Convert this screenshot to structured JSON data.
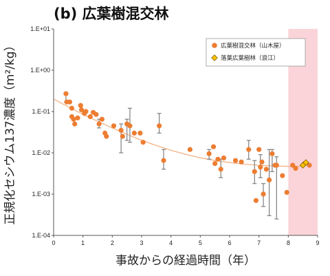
{
  "title": "(b) 広葉樹混交林",
  "chart_data": {
    "type": "scatter",
    "title": "(b) 広葉樹混交林",
    "xlabel": "事故からの経過時間（年）",
    "ylabel": "正規化セシウム137濃度（m²/kg）",
    "xlim": [
      0,
      9
    ],
    "ylim": [
      0.0001,
      10
    ],
    "yscale": "log",
    "x_ticks": [
      "0",
      "1",
      "2",
      "3",
      "4",
      "5",
      "6",
      "7",
      "8",
      "9"
    ],
    "y_ticks": [
      "1.E-04",
      "1.E-03",
      "1.E-02",
      "1.E-01",
      "1.E+00",
      "1.E+01"
    ],
    "grid": false,
    "legend_position": "top-right",
    "shaded_region": {
      "x": [
        8,
        9
      ],
      "color": "#fad4d8"
    },
    "series": [
      {
        "name": "広葉樹混交林（山木屋）",
        "marker": "circle",
        "color": "#ed7d31",
        "points": [
          {
            "x": 0.42,
            "y": 0.27
          },
          {
            "x": 0.45,
            "y": 0.17
          },
          {
            "x": 0.55,
            "y": 0.17
          },
          {
            "x": 0.62,
            "y": 0.12
          },
          {
            "x": 0.62,
            "y": 0.075
          },
          {
            "x": 0.68,
            "y": 0.065
          },
          {
            "x": 0.72,
            "y": 0.05
          },
          {
            "x": 0.82,
            "y": 0.07
          },
          {
            "x": 0.92,
            "y": 0.14
          },
          {
            "x": 0.95,
            "y": 0.11
          },
          {
            "x": 1.05,
            "y": 0.09
          },
          {
            "x": 1.1,
            "y": 0.1
          },
          {
            "x": 1.25,
            "y": 0.075
          },
          {
            "x": 1.35,
            "y": 0.095
          },
          {
            "x": 1.45,
            "y": 0.085
          },
          {
            "x": 1.55,
            "y": 0.05
          },
          {
            "x": 1.65,
            "y": 0.065
          },
          {
            "x": 1.75,
            "y": 0.03
          },
          {
            "x": 1.8,
            "y": 0.025
          },
          {
            "x": 2.05,
            "y": 0.045
          },
          {
            "x": 2.3,
            "y": 0.035
          },
          {
            "x": 2.35,
            "y": 0.025
          },
          {
            "x": 2.5,
            "y": 0.05
          },
          {
            "x": 2.6,
            "y": 0.045
          },
          {
            "x": 2.75,
            "y": 0.03
          },
          {
            "x": 2.95,
            "y": 0.03
          },
          {
            "x": 3.05,
            "y": 0.018
          },
          {
            "x": 3.6,
            "y": 0.045
          },
          {
            "x": 3.75,
            "y": 0.0065
          },
          {
            "x": 4.65,
            "y": 0.012
          },
          {
            "x": 5.3,
            "y": 0.0095
          },
          {
            "x": 5.45,
            "y": 0.014
          },
          {
            "x": 5.5,
            "y": 0.0055
          },
          {
            "x": 5.6,
            "y": 0.007
          },
          {
            "x": 5.7,
            "y": 0.004
          },
          {
            "x": 5.8,
            "y": 0.0075
          },
          {
            "x": 6.2,
            "y": 0.0065
          },
          {
            "x": 6.4,
            "y": 0.006
          },
          {
            "x": 6.65,
            "y": 0.012
          },
          {
            "x": 6.85,
            "y": 0.0035
          },
          {
            "x": 6.9,
            "y": 0.0007
          },
          {
            "x": 7.0,
            "y": 0.012
          },
          {
            "x": 7.05,
            "y": 0.0045
          },
          {
            "x": 7.1,
            "y": 0.006
          },
          {
            "x": 7.15,
            "y": 0.001
          },
          {
            "x": 7.25,
            "y": 0.004
          },
          {
            "x": 7.35,
            "y": 0.0022
          },
          {
            "x": 7.45,
            "y": 0.0095
          },
          {
            "x": 7.55,
            "y": 0.005
          },
          {
            "x": 7.6,
            "y": 0.005
          },
          {
            "x": 7.8,
            "y": 0.0028
          },
          {
            "x": 7.95,
            "y": 0.0011
          },
          {
            "x": 8.15,
            "y": 0.005
          },
          {
            "x": 8.25,
            "y": 0.0042
          },
          {
            "x": 8.55,
            "y": 0.0055
          },
          {
            "x": 8.72,
            "y": 0.005
          }
        ],
        "error_bars": [
          {
            "x": 0.42,
            "low": 0.17,
            "high": 0.27
          },
          {
            "x": 1.55,
            "low": 0.04,
            "high": 0.065
          },
          {
            "x": 2.3,
            "low": 0.01,
            "high": 0.05
          },
          {
            "x": 2.5,
            "low": 0.02,
            "high": 0.065
          },
          {
            "x": 2.6,
            "low": 0.018,
            "high": 0.12
          },
          {
            "x": 3.6,
            "low": 0.03,
            "high": 0.09
          },
          {
            "x": 3.75,
            "low": 0.004,
            "high": 0.012
          },
          {
            "x": 5.3,
            "low": 0.007,
            "high": 0.012
          },
          {
            "x": 5.7,
            "low": 0.0025,
            "high": 0.007
          },
          {
            "x": 6.65,
            "low": 0.007,
            "high": 0.02
          },
          {
            "x": 6.85,
            "low": 0.0018,
            "high": 0.0065
          },
          {
            "x": 7.05,
            "low": 0.0025,
            "high": 0.009
          },
          {
            "x": 7.15,
            "low": 0.0005,
            "high": 0.0018
          },
          {
            "x": 7.35,
            "low": 0.0003,
            "high": 0.012
          },
          {
            "x": 7.45,
            "low": 0.0035,
            "high": 0.012
          },
          {
            "x": 7.6,
            "low": 0.00025,
            "high": 0.008
          }
        ]
      },
      {
        "name": "落葉広葉樹林（浪江）",
        "marker": "diamond",
        "color": "#ffc000",
        "points": [
          {
            "x": 8.5,
            "y": 0.005
          },
          {
            "x": 8.6,
            "y": 0.0058
          }
        ]
      }
    ],
    "trendline": {
      "color": "#f4b183",
      "points": [
        {
          "x": 0,
          "y": 0.2
        },
        {
          "x": 0.5,
          "y": 0.13
        },
        {
          "x": 1,
          "y": 0.085
        },
        {
          "x": 1.5,
          "y": 0.058
        },
        {
          "x": 2,
          "y": 0.04
        },
        {
          "x": 2.5,
          "y": 0.028
        },
        {
          "x": 3,
          "y": 0.02
        },
        {
          "x": 3.5,
          "y": 0.015
        },
        {
          "x": 4,
          "y": 0.0115
        },
        {
          "x": 4.5,
          "y": 0.0092
        },
        {
          "x": 5,
          "y": 0.0076
        },
        {
          "x": 5.5,
          "y": 0.0065
        },
        {
          "x": 6,
          "y": 0.0058
        },
        {
          "x": 6.5,
          "y": 0.0053
        },
        {
          "x": 7,
          "y": 0.005
        },
        {
          "x": 7.5,
          "y": 0.0048
        },
        {
          "x": 8,
          "y": 0.0047
        },
        {
          "x": 8.5,
          "y": 0.0047
        }
      ]
    }
  }
}
